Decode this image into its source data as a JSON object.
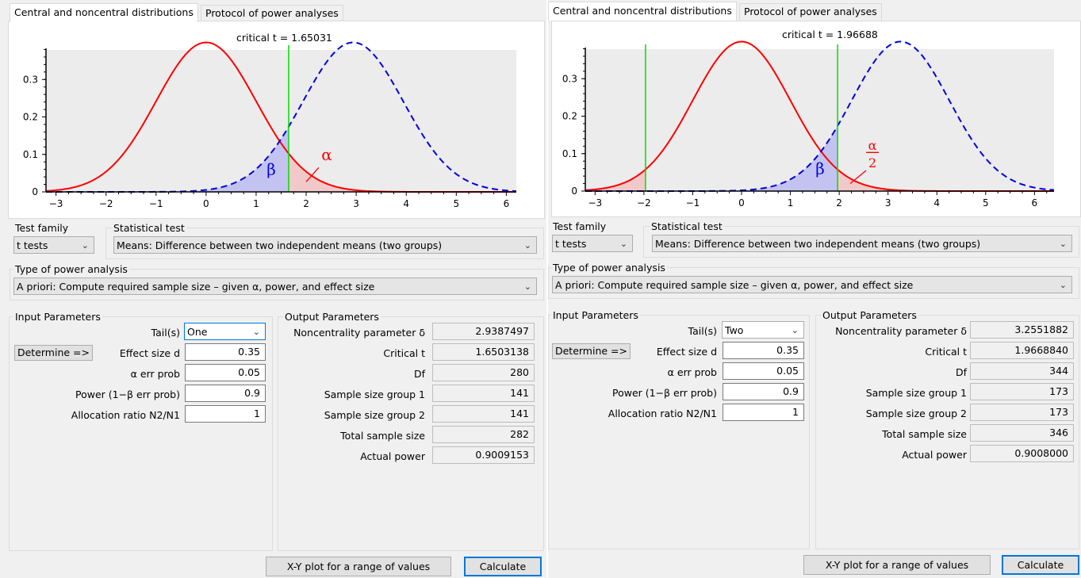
{
  "panels": [
    {
      "tabs": [
        "Central and noncentral distributions",
        "Protocol of power analyses"
      ],
      "plot": {
        "critical_label": "critical t = 1.65031",
        "critical_t": [
          1.65031
        ],
        "noncentrality": 2.9387497,
        "xlim": [
          -3.2,
          6.2
        ],
        "ylim": [
          0,
          0.4
        ],
        "x_ticks": [
          "−3",
          "−2",
          "−1",
          "0",
          "1",
          "2",
          "3",
          "4",
          "5",
          "6"
        ],
        "x_tick_values": [
          -3,
          -2,
          -1,
          0,
          1,
          2,
          3,
          4,
          5,
          6
        ],
        "y_ticks": [
          "0",
          "0.1",
          "0.2",
          "0.3"
        ],
        "y_tick_values": [
          0,
          0.1,
          0.2,
          0.3
        ],
        "beta_label": "β",
        "alpha_label": "α",
        "alpha_denominator": "",
        "tails": "one",
        "colors": {
          "central": "#ff0000",
          "noncentral": "#0000e0",
          "critical": "#00dd00"
        }
      },
      "test_family_label": "Test family",
      "test_family_value": "t tests",
      "statistical_test_label": "Statistical test",
      "statistical_test_value": "Means: Difference between two independent means (two groups)",
      "analysis_type_label": "Type of power analysis",
      "analysis_type_value": "A priori: Compute required sample size – given α, power, and effect size",
      "input_title": "Input Parameters",
      "output_title": "Output Parameters",
      "determine_label": "Determine =>",
      "inputs": [
        {
          "label": "Tail(s)",
          "value": "One"
        },
        {
          "label": "Effect size d",
          "value": "0.35"
        },
        {
          "label": "α err prob",
          "value": "0.05"
        },
        {
          "label": "Power (1−β err prob)",
          "value": "0.9"
        },
        {
          "label": "Allocation ratio N2/N1",
          "value": "1"
        }
      ],
      "outputs": [
        {
          "label": "Noncentrality parameter δ",
          "value": "2.9387497"
        },
        {
          "label": "Critical t",
          "value": "1.6503138"
        },
        {
          "label": "Df",
          "value": "280"
        },
        {
          "label": "Sample size group 1",
          "value": "141"
        },
        {
          "label": "Sample size group 2",
          "value": "141"
        },
        {
          "label": "Total sample size",
          "value": "282"
        },
        {
          "label": "Actual power",
          "value": "0.9009153"
        }
      ],
      "xy_button": "X-Y plot for a range of values",
      "calculate_button": "Calculate"
    },
    {
      "tabs": [
        "Central and noncentral distributions",
        "Protocol of power analyses"
      ],
      "plot": {
        "critical_label": "critical t = 1.96688",
        "critical_t": [
          -1.96688,
          1.96688
        ],
        "noncentrality": 3.2551882,
        "xlim": [
          -3.2,
          6.4
        ],
        "ylim": [
          0,
          0.4
        ],
        "x_ticks": [
          "−3",
          "−2",
          "−1",
          "0",
          "1",
          "2",
          "3",
          "4",
          "5",
          "6"
        ],
        "x_tick_values": [
          -3,
          -2,
          -1,
          0,
          1,
          2,
          3,
          4,
          5,
          6
        ],
        "y_ticks": [
          "0",
          "0.1",
          "0.2",
          "0.3"
        ],
        "y_tick_values": [
          0,
          0.1,
          0.2,
          0.3
        ],
        "beta_label": "β",
        "alpha_label": "α",
        "alpha_denominator": "2",
        "tails": "two",
        "colors": {
          "central": "#ff0000",
          "noncentral": "#0000e0",
          "critical": "#00dd00"
        }
      },
      "test_family_label": "Test family",
      "test_family_value": "t tests",
      "statistical_test_label": "Statistical test",
      "statistical_test_value": "Means: Difference between two independent means (two groups)",
      "analysis_type_label": "Type of power analysis",
      "analysis_type_value": "A priori: Compute required sample size – given α, power, and effect size",
      "input_title": "Input Parameters",
      "output_title": "Output Parameters",
      "determine_label": "Determine =>",
      "inputs": [
        {
          "label": "Tail(s)",
          "value": "Two"
        },
        {
          "label": "Effect size d",
          "value": "0.35"
        },
        {
          "label": "α err prob",
          "value": "0.05"
        },
        {
          "label": "Power (1−β err prob)",
          "value": "0.9"
        },
        {
          "label": "Allocation ratio N2/N1",
          "value": "1"
        }
      ],
      "outputs": [
        {
          "label": "Noncentrality parameter δ",
          "value": "3.2551882"
        },
        {
          "label": "Critical t",
          "value": "1.9668840"
        },
        {
          "label": "Df",
          "value": "344"
        },
        {
          "label": "Sample size group 1",
          "value": "173"
        },
        {
          "label": "Sample size group 2",
          "value": "173"
        },
        {
          "label": "Total sample size",
          "value": "346"
        },
        {
          "label": "Actual power",
          "value": "0.9008000"
        }
      ],
      "xy_button": "X-Y plot for a range of values",
      "calculate_button": "Calculate"
    }
  ]
}
